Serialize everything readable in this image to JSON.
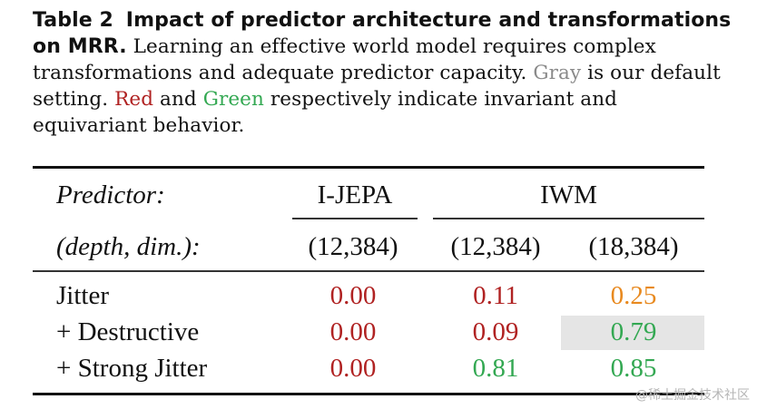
{
  "caption": {
    "label": "Table 2",
    "title": "Impact of predictor architecture and transformations on MRR.",
    "sentence1": "Learning an effective world model requires complex transformations and adequate predictor capacity.",
    "gray_word": "Gray",
    "sentence2_rest": "is our default setting.",
    "red_word": "Red",
    "and_word": "and",
    "green_word": "Green",
    "sentence3_rest": "respectively indicate invariant and equivariant behavior."
  },
  "table": {
    "header_row1": {
      "label": "Predictor:",
      "group1": "I-JEPA",
      "group2": "IWM"
    },
    "header_row2": {
      "label": "(depth, dim.):",
      "col1": "(12,384)",
      "col2": "(12,384)",
      "col3": "(18,384)"
    },
    "rows": [
      {
        "label": "Jitter",
        "values": [
          "0.00",
          "0.11",
          "0.25"
        ],
        "colors": [
          "#b02222",
          "#b02222",
          "#e8891e"
        ],
        "highlighted_col": null
      },
      {
        "label": "+ Destructive",
        "values": [
          "0.00",
          "0.09",
          "0.79"
        ],
        "colors": [
          "#b02222",
          "#b02222",
          "#33a852"
        ],
        "highlighted_col": 2
      },
      {
        "label": "+ Strong Jitter",
        "values": [
          "0.00",
          "0.81",
          "0.85"
        ],
        "colors": [
          "#b02222",
          "#33a852",
          "#33a852"
        ],
        "highlighted_col": null
      }
    ]
  },
  "watermark": "@稀土掘金技术社区"
}
